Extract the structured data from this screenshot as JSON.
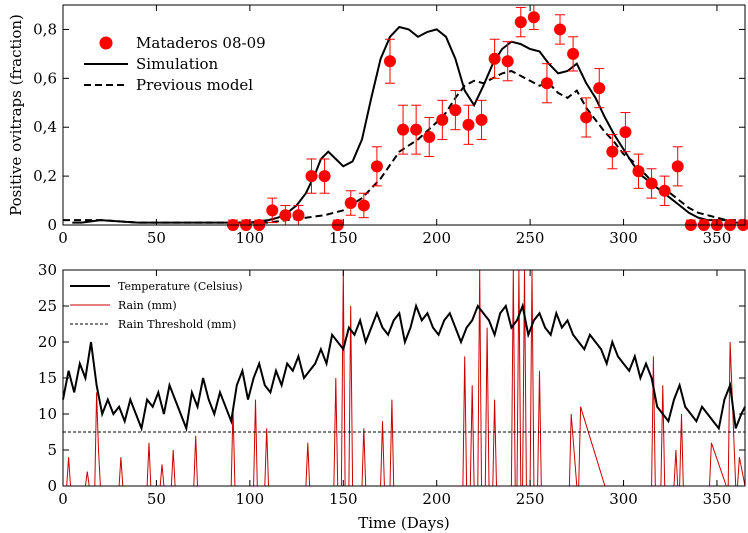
{
  "chart_data": [
    {
      "type": "scatter",
      "ylabel": "Positive ovitraps (fraction)",
      "xlim": [
        0,
        365
      ],
      "ylim": [
        0,
        0.9
      ],
      "grid": false,
      "legend_placement": "top-left",
      "x_ticks": [
        0,
        50,
        100,
        150,
        200,
        250,
        300,
        350
      ],
      "x_tick_labels": [
        "0",
        "50",
        "100",
        "150",
        "200",
        "250",
        "300",
        "350"
      ],
      "y_ticks": [
        0,
        0.2,
        0.4,
        0.6,
        0.8
      ],
      "y_tick_labels": [
        "0",
        "0,2",
        "0,4",
        "0,6",
        "0,8"
      ],
      "series": [
        {
          "name": "Mataderos 08-09",
          "style": "points-with-errorbars",
          "color": "#ff0000",
          "points": [
            {
              "x": 91,
              "y": 0.0,
              "err": 0.02
            },
            {
              "x": 98,
              "y": 0.0,
              "err": 0.02
            },
            {
              "x": 105,
              "y": 0.0,
              "err": 0.02
            },
            {
              "x": 112,
              "y": 0.06,
              "err": 0.05
            },
            {
              "x": 119,
              "y": 0.04,
              "err": 0.04
            },
            {
              "x": 126,
              "y": 0.04,
              "err": 0.04
            },
            {
              "x": 133,
              "y": 0.2,
              "err": 0.07
            },
            {
              "x": 140,
              "y": 0.2,
              "err": 0.07
            },
            {
              "x": 147,
              "y": 0.0,
              "err": 0.02
            },
            {
              "x": 154,
              "y": 0.09,
              "err": 0.05
            },
            {
              "x": 161,
              "y": 0.08,
              "err": 0.05
            },
            {
              "x": 168,
              "y": 0.24,
              "err": 0.08
            },
            {
              "x": 175,
              "y": 0.67,
              "err": 0.09
            },
            {
              "x": 182,
              "y": 0.39,
              "err": 0.1
            },
            {
              "x": 189,
              "y": 0.39,
              "err": 0.1
            },
            {
              "x": 196,
              "y": 0.36,
              "err": 0.08
            },
            {
              "x": 203,
              "y": 0.43,
              "err": 0.08
            },
            {
              "x": 210,
              "y": 0.47,
              "err": 0.08
            },
            {
              "x": 217,
              "y": 0.41,
              "err": 0.08
            },
            {
              "x": 224,
              "y": 0.43,
              "err": 0.08
            },
            {
              "x": 231,
              "y": 0.68,
              "err": 0.08
            },
            {
              "x": 238,
              "y": 0.67,
              "err": 0.08
            },
            {
              "x": 245,
              "y": 0.83,
              "err": 0.06
            },
            {
              "x": 252,
              "y": 0.85,
              "err": 0.05
            },
            {
              "x": 259,
              "y": 0.58,
              "err": 0.08
            },
            {
              "x": 266,
              "y": 0.8,
              "err": 0.06
            },
            {
              "x": 273,
              "y": 0.7,
              "err": 0.07
            },
            {
              "x": 280,
              "y": 0.44,
              "err": 0.08
            },
            {
              "x": 287,
              "y": 0.56,
              "err": 0.08
            },
            {
              "x": 294,
              "y": 0.3,
              "err": 0.07
            },
            {
              "x": 301,
              "y": 0.38,
              "err": 0.08
            },
            {
              "x": 308,
              "y": 0.22,
              "err": 0.07
            },
            {
              "x": 315,
              "y": 0.17,
              "err": 0.06
            },
            {
              "x": 322,
              "y": 0.14,
              "err": 0.06
            },
            {
              "x": 329,
              "y": 0.24,
              "err": 0.08
            },
            {
              "x": 336,
              "y": 0.0,
              "err": 0.02
            },
            {
              "x": 343,
              "y": 0.0,
              "err": 0.02
            },
            {
              "x": 350,
              "y": 0.0,
              "err": 0.02
            },
            {
              "x": 357,
              "y": 0.0,
              "err": 0.02
            },
            {
              "x": 364,
              "y": 0.0,
              "err": 0.02
            }
          ]
        },
        {
          "name": "Simulation",
          "style": "solid-line",
          "color": "#000000",
          "x": [
            5,
            10,
            20,
            40,
            60,
            80,
            100,
            110,
            115,
            120,
            125,
            130,
            135,
            138,
            142,
            146,
            150,
            155,
            160,
            165,
            170,
            175,
            180,
            185,
            190,
            195,
            200,
            205,
            210,
            215,
            220,
            225,
            230,
            235,
            240,
            245,
            250,
            255,
            260,
            265,
            270,
            275,
            280,
            285,
            290,
            295,
            300,
            305,
            310,
            315,
            320,
            325,
            330,
            335,
            340,
            345,
            350,
            355,
            360,
            365
          ],
          "y": [
            0.01,
            0.01,
            0.02,
            0.01,
            0.01,
            0.01,
            0.01,
            0.02,
            0.03,
            0.05,
            0.08,
            0.13,
            0.21,
            0.27,
            0.3,
            0.27,
            0.24,
            0.26,
            0.35,
            0.52,
            0.68,
            0.77,
            0.81,
            0.8,
            0.77,
            0.79,
            0.8,
            0.77,
            0.68,
            0.55,
            0.49,
            0.57,
            0.66,
            0.72,
            0.75,
            0.74,
            0.72,
            0.71,
            0.66,
            0.62,
            0.63,
            0.66,
            0.58,
            0.52,
            0.44,
            0.37,
            0.31,
            0.25,
            0.2,
            0.17,
            0.14,
            0.11,
            0.08,
            0.05,
            0.03,
            0.02,
            0.02,
            0.02,
            0.01,
            0.01
          ]
        },
        {
          "name": "Previous model",
          "style": "dashed-line",
          "color": "#000000",
          "x": [
            0,
            20,
            40,
            60,
            80,
            100,
            110,
            120,
            130,
            140,
            150,
            160,
            170,
            180,
            190,
            200,
            205,
            210,
            215,
            220,
            225,
            230,
            235,
            240,
            245,
            250,
            255,
            260,
            265,
            270,
            275,
            280,
            285,
            290,
            295,
            300,
            305,
            310,
            315,
            320,
            325,
            330,
            335,
            340,
            345,
            350,
            355,
            360,
            365
          ],
          "y": [
            0.02,
            0.02,
            0.01,
            0.01,
            0.01,
            0.01,
            0.01,
            0.02,
            0.03,
            0.04,
            0.06,
            0.11,
            0.19,
            0.3,
            0.35,
            0.42,
            0.46,
            0.52,
            0.57,
            0.59,
            0.58,
            0.6,
            0.62,
            0.63,
            0.61,
            0.59,
            0.57,
            0.58,
            0.54,
            0.52,
            0.55,
            0.48,
            0.43,
            0.38,
            0.34,
            0.29,
            0.26,
            0.22,
            0.18,
            0.15,
            0.13,
            0.1,
            0.07,
            0.05,
            0.04,
            0.03,
            0.02,
            0.02,
            0.02
          ]
        }
      ]
    },
    {
      "type": "line",
      "xlabel": "Time (Days)",
      "xlim": [
        0,
        365
      ],
      "ylim": [
        0,
        30
      ],
      "grid": false,
      "legend_placement": "top-left",
      "x_ticks": [
        0,
        50,
        100,
        150,
        200,
        250,
        300,
        350
      ],
      "x_tick_labels": [
        "0",
        "50",
        "100",
        "150",
        "200",
        "250",
        "300",
        "350"
      ],
      "y_ticks": [
        0,
        5,
        10,
        15,
        20,
        25,
        30
      ],
      "y_tick_labels": [
        "0",
        "5",
        "10",
        "15",
        "20",
        "25",
        "30"
      ],
      "series": [
        {
          "name": "Temperature (Celsius)",
          "style": "solid-line",
          "color": "#000000",
          "x": [
            0,
            3,
            6,
            9,
            12,
            15,
            18,
            21,
            24,
            27,
            30,
            33,
            36,
            39,
            42,
            45,
            48,
            51,
            54,
            57,
            60,
            63,
            66,
            69,
            72,
            75,
            78,
            81,
            84,
            87,
            90,
            93,
            96,
            99,
            102,
            105,
            108,
            111,
            114,
            117,
            120,
            123,
            126,
            129,
            132,
            135,
            138,
            141,
            144,
            147,
            150,
            153,
            156,
            159,
            162,
            165,
            168,
            171,
            174,
            177,
            180,
            183,
            186,
            189,
            192,
            195,
            198,
            201,
            204,
            207,
            210,
            213,
            216,
            219,
            222,
            225,
            228,
            231,
            234,
            237,
            240,
            243,
            246,
            249,
            252,
            255,
            258,
            261,
            264,
            267,
            270,
            273,
            276,
            279,
            282,
            285,
            288,
            291,
            294,
            297,
            300,
            303,
            306,
            309,
            312,
            315,
            318,
            321,
            324,
            327,
            330,
            333,
            336,
            339,
            342,
            345,
            348,
            351,
            354,
            357,
            360,
            363,
            365
          ],
          "y": [
            12,
            16,
            13,
            17,
            15,
            20,
            14,
            10,
            12,
            10,
            11,
            9,
            12,
            10,
            8,
            12,
            11,
            13,
            10,
            14,
            12,
            10,
            8,
            13,
            11,
            15,
            12,
            10,
            13,
            11,
            9,
            14,
            16,
            12,
            15,
            17,
            14,
            13,
            16,
            14,
            17,
            16,
            18,
            15,
            16,
            17,
            19,
            17,
            21,
            20,
            19,
            22,
            21,
            23,
            20,
            22,
            24,
            22,
            21,
            23,
            24,
            20,
            22,
            25,
            23,
            24,
            22,
            21,
            23,
            24,
            22,
            20,
            22,
            23,
            25,
            24,
            23,
            21,
            24,
            25,
            22,
            23,
            25,
            21,
            23,
            24,
            22,
            21,
            24,
            22,
            23,
            21,
            20,
            19,
            21,
            20,
            19,
            17,
            20,
            18,
            17,
            16,
            18,
            15,
            17,
            15,
            11,
            10,
            9,
            12,
            14,
            11,
            10,
            9,
            11,
            10,
            9,
            8,
            12,
            14,
            8,
            10,
            11
          ]
        },
        {
          "name": "Rain (mm)",
          "style": "solid-line",
          "color": "#cc0000",
          "x": [
            0,
            2,
            3,
            4,
            6,
            12,
            13,
            14,
            17,
            18,
            19,
            20,
            22,
            30,
            31,
            32,
            40,
            45,
            46,
            47,
            52,
            53,
            54,
            58,
            59,
            60,
            70,
            71,
            72,
            80,
            90,
            91,
            92,
            102,
            103,
            104,
            108,
            109,
            110,
            120,
            130,
            131,
            132,
            140,
            145,
            146,
            147,
            149,
            150,
            151,
            153,
            154,
            155,
            160,
            161,
            162,
            170,
            171,
            172,
            175,
            176,
            177,
            180,
            190,
            200,
            214,
            215,
            216,
            218,
            219,
            220,
            222,
            223,
            224,
            226,
            227,
            228,
            230,
            231,
            232,
            240,
            241,
            242,
            243,
            244,
            245,
            246,
            247,
            248,
            250,
            251,
            252,
            254,
            255,
            256,
            260,
            270,
            271,
            272,
            275,
            276,
            277,
            290,
            310,
            311,
            312,
            315,
            316,
            317,
            318,
            320,
            321,
            322,
            327,
            328,
            329,
            330,
            331,
            332,
            335,
            345,
            346,
            347,
            355,
            356,
            357,
            360,
            361,
            362,
            365
          ],
          "y": [
            0,
            0,
            4,
            0,
            0,
            0,
            2,
            0,
            0,
            13,
            5,
            0,
            0,
            0,
            4,
            0,
            0,
            0,
            6,
            0,
            0,
            3,
            0,
            0,
            5,
            0,
            0,
            7,
            0,
            0,
            0,
            11,
            0,
            0,
            12,
            0,
            0,
            8,
            0,
            0,
            0,
            6,
            0,
            0,
            0,
            15,
            0,
            0,
            30,
            0,
            0,
            25,
            0,
            0,
            8,
            0,
            0,
            9,
            0,
            0,
            12,
            0,
            0,
            0,
            0,
            0,
            18,
            0,
            0,
            14,
            0,
            0,
            30,
            0,
            0,
            22,
            0,
            0,
            12,
            0,
            0,
            30,
            0,
            0,
            30,
            0,
            0,
            30,
            0,
            0,
            30,
            0,
            0,
            16,
            0,
            0,
            0,
            0,
            10,
            0,
            0,
            11,
            0,
            0,
            0,
            0,
            0,
            18,
            0,
            0,
            0,
            14,
            0,
            0,
            5,
            0,
            0,
            10,
            0,
            0,
            0,
            0,
            6,
            0,
            0,
            20,
            0,
            0,
            4,
            0
          ]
        },
        {
          "name": "Rain Threshold (mm)",
          "style": "dashed-line",
          "color": "#000000",
          "x": [
            0,
            365
          ],
          "y": [
            7.5,
            7.5
          ]
        }
      ]
    }
  ]
}
